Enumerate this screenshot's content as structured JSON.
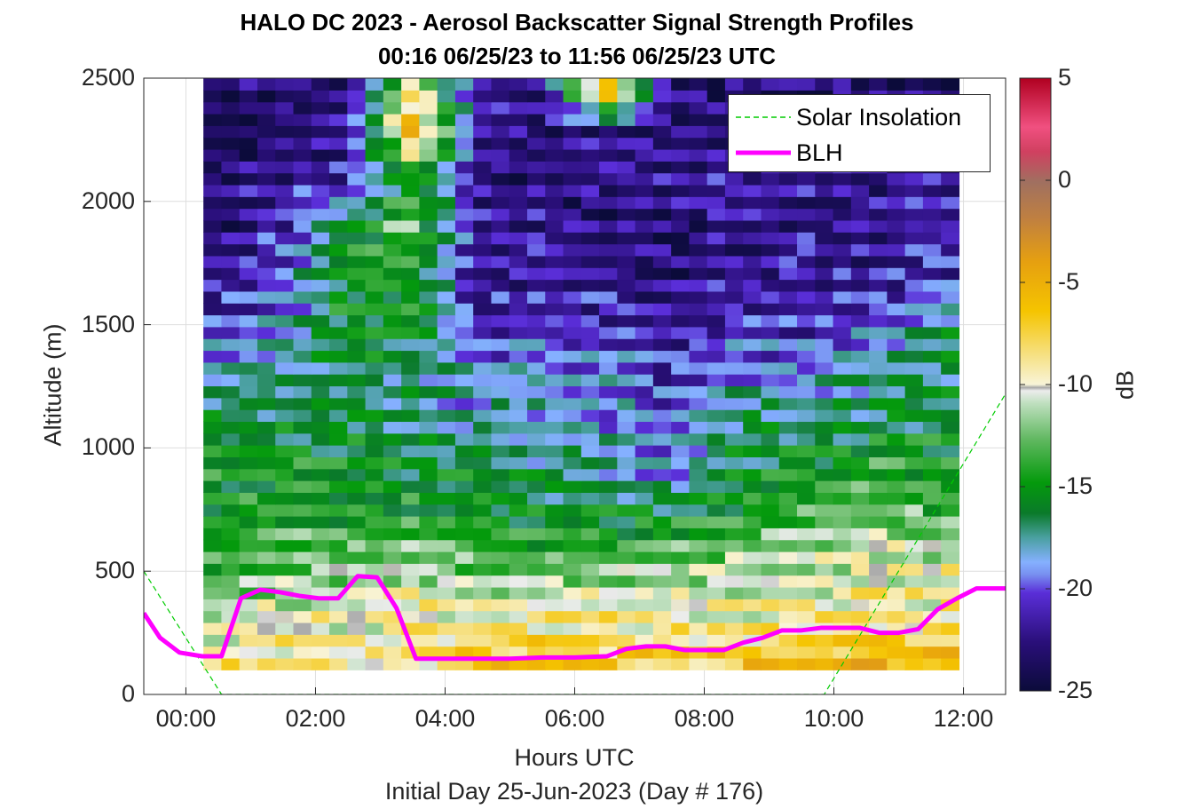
{
  "chart_data": {
    "type": "heatmap",
    "title": "HALO DC 2023 - Aerosol Backscatter Signal Strength Profiles",
    "subtitle": "00:16 06/25/23 to 11:56 06/25/23  UTC",
    "xlabel": "Hours UTC",
    "ylabel": "Altitude (m)",
    "footer": "Initial Day 25-Jun-2023 (Day # 176)",
    "x_ticks": [
      "00:00",
      "02:00",
      "04:00",
      "06:00",
      "08:00",
      "10:00",
      "12:00"
    ],
    "x_tick_hours": [
      0,
      2,
      4,
      6,
      8,
      10,
      12
    ],
    "xlim_hours": [
      -0.65,
      12.65
    ],
    "y_ticks": [
      0,
      500,
      1000,
      1500,
      2000,
      2500
    ],
    "ylim": [
      0,
      2500
    ],
    "grid": true,
    "colorbar": {
      "label": "dB",
      "range": [
        -25,
        5
      ],
      "ticks": [
        5,
        0,
        -5,
        -10,
        -15,
        -20,
        -25
      ]
    },
    "data_extent": {
      "x_start_hours": 0.27,
      "x_end_hours": 11.93,
      "y_start": 100,
      "y_end": 2500
    },
    "backscatter_profile_db": {
      "altitudes_m": [
        150,
        300,
        500,
        700,
        900,
        1100,
        1300,
        1500,
        1700,
        1900,
        2100,
        2300,
        2450
      ],
      "hours": [
        0.5,
        1.5,
        2.5,
        3.5,
        4.5,
        5.5,
        6.5,
        7.5,
        8.5,
        9.5,
        10.5,
        11.5
      ],
      "values": [
        [
          -9,
          -9,
          -9,
          -9,
          -7,
          -7,
          -7,
          -7,
          -7,
          -6,
          -6,
          -6
        ],
        [
          -10,
          -10,
          -10,
          -9,
          -9,
          -9,
          -9,
          -10,
          -10,
          -9,
          -9,
          -9
        ],
        [
          -14,
          -12,
          -12,
          -11,
          -13,
          -13,
          -12,
          -12,
          -11,
          -11,
          -10,
          -10
        ],
        [
          -15,
          -14,
          -14,
          -14,
          -15,
          -15,
          -15,
          -15,
          -14,
          -13,
          -12,
          -13
        ],
        [
          -15,
          -15,
          -15,
          -16,
          -16,
          -17,
          -18,
          -19,
          -16,
          -15,
          -14,
          -14
        ],
        [
          -16,
          -16,
          -16,
          -17,
          -18,
          -18,
          -19,
          -20,
          -17,
          -17,
          -16,
          -16
        ],
        [
          -18,
          -17,
          -16,
          -17,
          -19,
          -19,
          -19,
          -21,
          -19,
          -19,
          -18,
          -17
        ],
        [
          -21,
          -19,
          -15,
          -15,
          -21,
          -21,
          -21,
          -22,
          -21,
          -21,
          -20,
          -17
        ],
        [
          -22,
          -20,
          -15,
          -15,
          -22,
          -22,
          -22,
          -23,
          -22,
          -22,
          -22,
          -21
        ],
        [
          -23,
          -21,
          -16,
          -12,
          -22,
          -22,
          -23,
          -23,
          -22,
          -22,
          -22,
          -22
        ],
        [
          -23,
          -22,
          -22,
          -15,
          -22,
          -23,
          -22,
          -22,
          -22,
          -22,
          -22,
          -22
        ],
        [
          -24,
          -23,
          -22,
          -5,
          -22,
          -23,
          -22,
          -23,
          -23,
          -23,
          -23,
          -23
        ],
        [
          -23,
          -23,
          -23,
          -9,
          -22,
          -23,
          -5,
          -23,
          -23,
          -23,
          -23,
          -23
        ]
      ]
    },
    "series": [
      {
        "name": "Solar Insolation",
        "style": "dashed",
        "color": "#00cc00",
        "x_hours": [
          -0.65,
          0.55,
          9.85,
          12.65
        ],
        "y": [
          500,
          0,
          0,
          1220
        ]
      },
      {
        "name": "BLH",
        "style": "solid",
        "color": "#ff00ff",
        "x_hours": [
          -0.65,
          -0.4,
          -0.1,
          0.25,
          0.55,
          0.85,
          1.15,
          1.45,
          1.75,
          2.05,
          2.35,
          2.65,
          2.95,
          3.25,
          3.55,
          3.85,
          4.15,
          4.5,
          5.0,
          5.5,
          6.0,
          6.5,
          6.8,
          7.1,
          7.4,
          7.7,
          8.0,
          8.3,
          8.6,
          8.9,
          9.2,
          9.5,
          9.8,
          10.1,
          10.4,
          10.7,
          11.0,
          11.3,
          11.6,
          11.9,
          12.2,
          12.5,
          12.65
        ],
        "y": [
          330,
          230,
          170,
          155,
          155,
          390,
          425,
          415,
          400,
          390,
          390,
          480,
          475,
          350,
          145,
          145,
          145,
          145,
          145,
          150,
          150,
          155,
          185,
          195,
          195,
          180,
          180,
          180,
          210,
          230,
          260,
          260,
          270,
          270,
          270,
          250,
          250,
          265,
          345,
          390,
          430,
          430,
          430
        ]
      }
    ]
  }
}
